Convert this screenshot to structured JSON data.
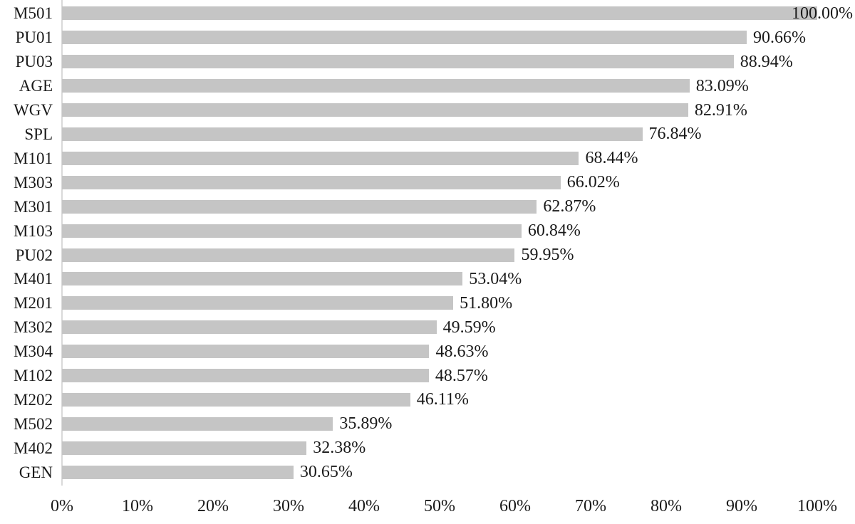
{
  "chart_data": {
    "type": "bar",
    "orientation": "horizontal",
    "title": "",
    "xlabel": "",
    "ylabel": "",
    "xlim": [
      0,
      100
    ],
    "grid": false,
    "legend": "none",
    "categories": [
      "M501",
      "PU01",
      "PU03",
      "AGE",
      "WGV",
      "SPL",
      "M101",
      "M303",
      "M301",
      "M103",
      "PU02",
      "M401",
      "M201",
      "M302",
      "M304",
      "M102",
      "M202",
      "M502",
      "M402",
      "GEN"
    ],
    "values": [
      100.0,
      90.66,
      88.94,
      83.09,
      82.91,
      76.84,
      68.44,
      66.02,
      62.87,
      60.84,
      59.95,
      53.04,
      51.8,
      49.59,
      48.63,
      48.57,
      46.11,
      35.89,
      32.38,
      30.65
    ],
    "value_labels": [
      "100.00%",
      "90.66%",
      "88.94%",
      "83.09%",
      "82.91%",
      "76.84%",
      "68.44%",
      "66.02%",
      "62.87%",
      "60.84%",
      "59.95%",
      "53.04%",
      "51.80%",
      "49.59%",
      "48.63%",
      "48.57%",
      "46.11%",
      "35.89%",
      "32.38%",
      "30.65%"
    ],
    "x_ticks": [
      "0%",
      "10%",
      "20%",
      "30%",
      "40%",
      "50%",
      "60%",
      "70%",
      "80%",
      "90%",
      "100%"
    ],
    "colors": {
      "bar": "#c5c5c5",
      "axis_line": "#d9d9d9",
      "text": "#1a1a1a",
      "background": "#ffffff"
    }
  }
}
